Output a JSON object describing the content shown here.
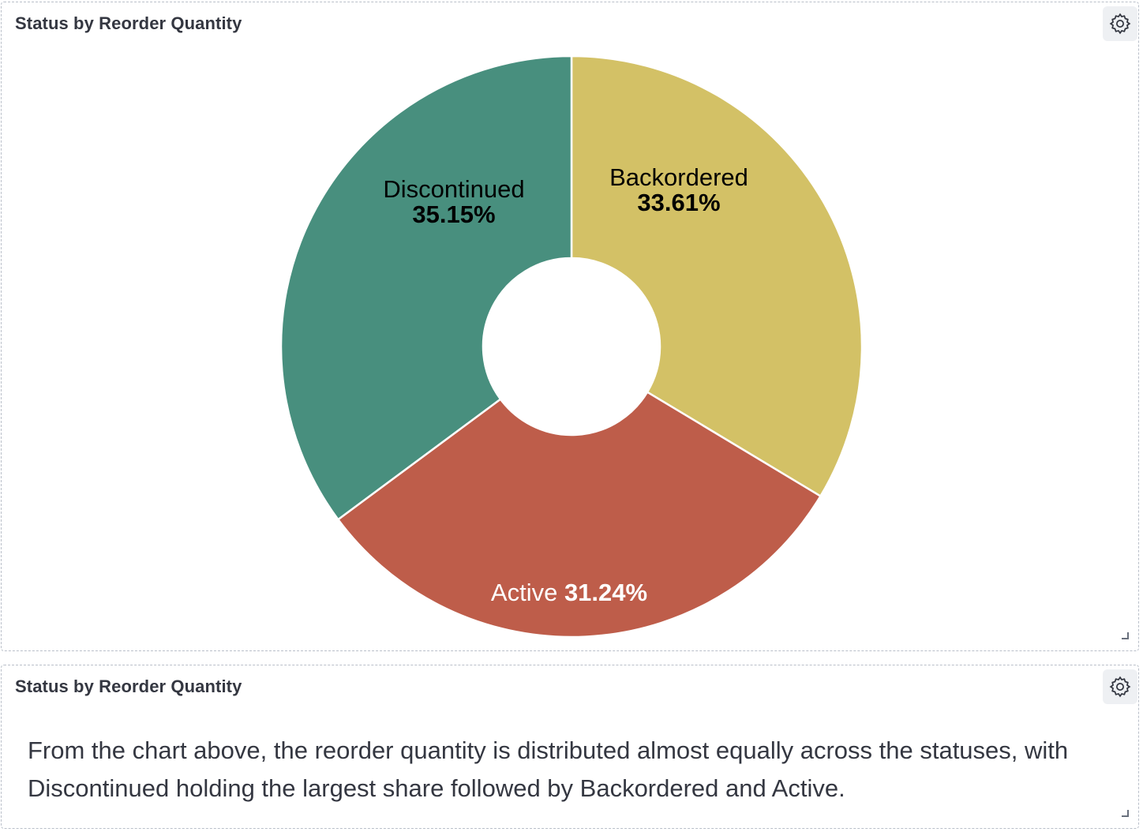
{
  "panels": [
    {
      "title": "Status by Reorder Quantity",
      "settings_icon": "gear-icon"
    },
    {
      "title": "Status by Reorder Quantity",
      "settings_icon": "gear-icon",
      "text": "From the chart above, the reorder quantity is distributed almost equally across the statuses, with Discontinued holding the largest share followed by Backordered and Active."
    }
  ],
  "chart_data": {
    "type": "pie",
    "donut": true,
    "title": "Status by Reorder Quantity",
    "slices": [
      {
        "label": "Backordered",
        "value": 33.61,
        "display": "33.61%",
        "color": "#d3c166",
        "label_color": "#000000"
      },
      {
        "label": "Active",
        "value": 31.24,
        "display": "31.24%",
        "color": "#be5d4a",
        "label_color": "#ffffff"
      },
      {
        "label": "Discontinued",
        "value": 35.15,
        "display": "35.15%",
        "color": "#488f7e",
        "label_color": "#000000"
      }
    ]
  }
}
